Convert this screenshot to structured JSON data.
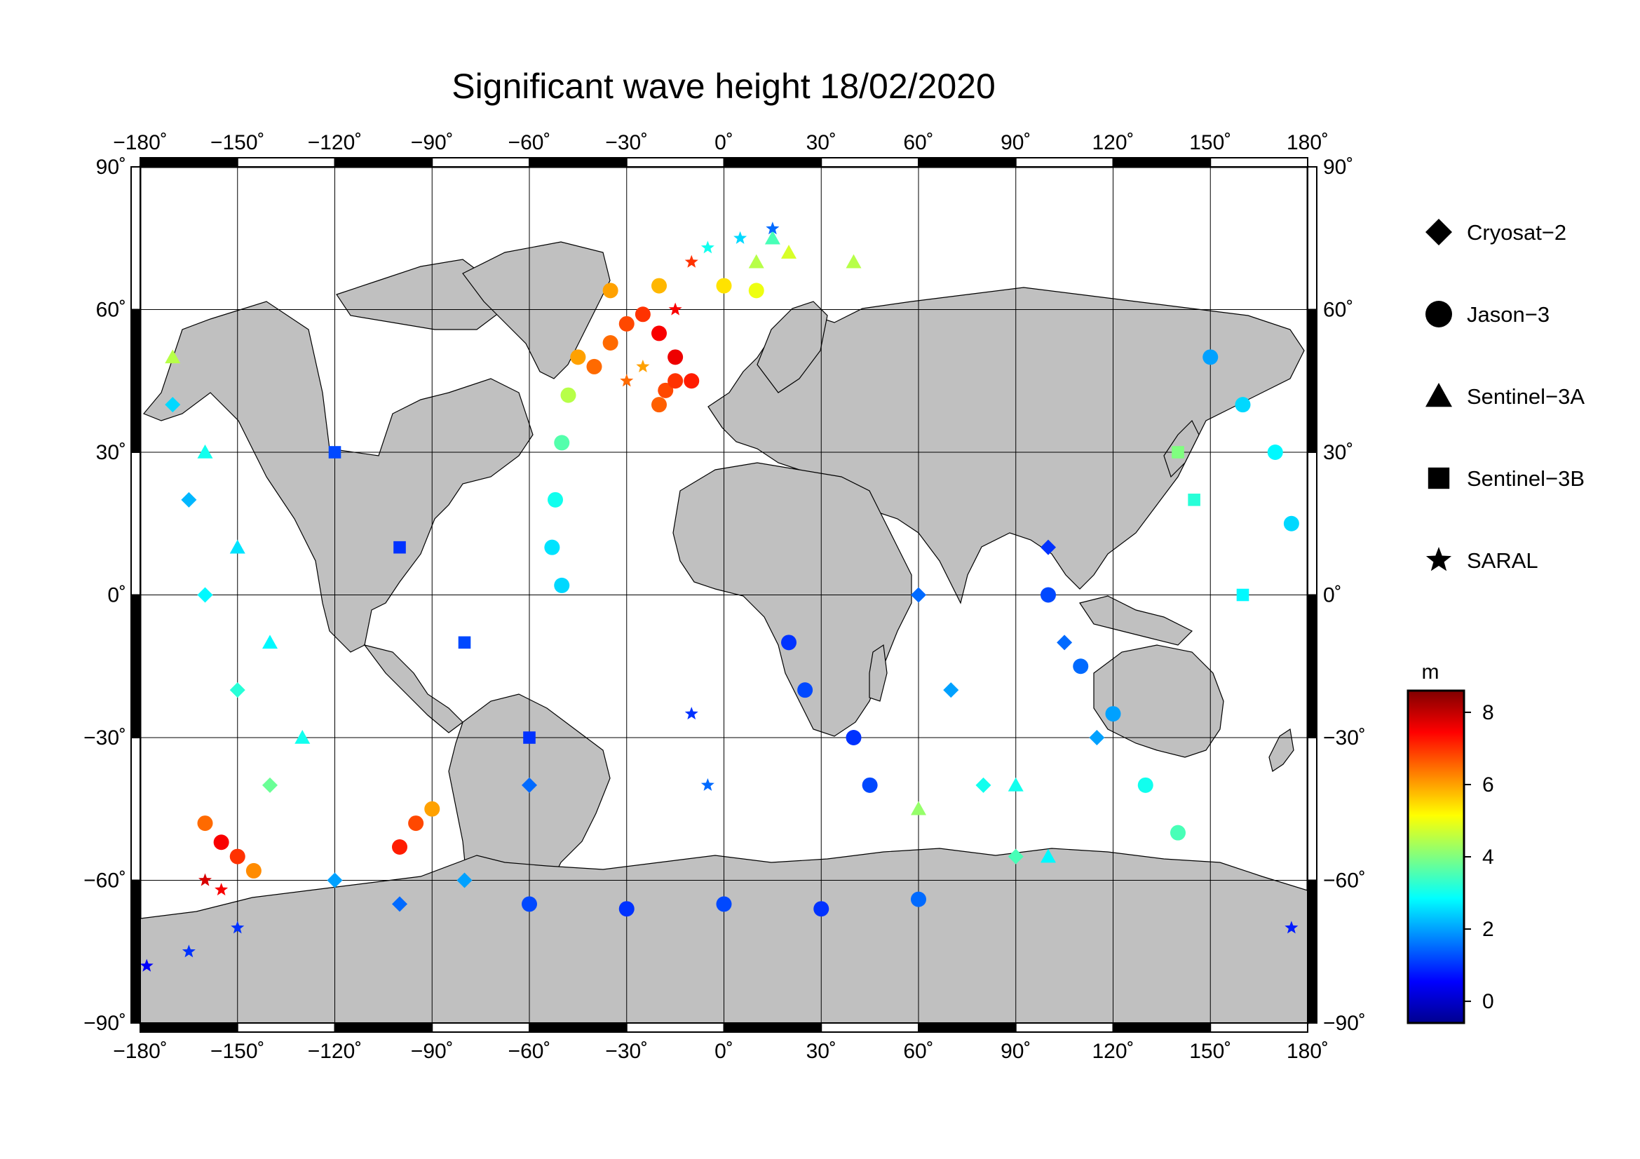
{
  "title": "Significant wave height 18/02/2020",
  "map": {
    "projection": "equirectangular",
    "lon_range": [
      -180,
      180
    ],
    "lat_range": [
      -90,
      90
    ],
    "grid_lon": [
      -180,
      -150,
      -120,
      -90,
      -60,
      -30,
      0,
      30,
      60,
      90,
      120,
      150,
      180
    ],
    "grid_lat": [
      -90,
      -60,
      -30,
      0,
      30,
      60,
      90
    ],
    "lon_labels": [
      "−180˚",
      "−150˚",
      "−120˚",
      "−90˚",
      "−60˚",
      "−30˚",
      "0˚",
      "30˚",
      "60˚",
      "90˚",
      "120˚",
      "150˚",
      "180˚"
    ],
    "lat_labels": [
      "−90˚",
      "−60˚",
      "−30˚",
      "0˚",
      "30˚",
      "60˚",
      "90˚"
    ],
    "land_color": "#c0c0c0",
    "ocean_color": "#ffffff"
  },
  "legend": {
    "items": [
      {
        "label": "Cryosat−2",
        "symbol": "diamond-icon"
      },
      {
        "label": "Jason−3",
        "symbol": "circle-icon"
      },
      {
        "label": "Sentinel−3A",
        "symbol": "triangle-icon"
      },
      {
        "label": "Sentinel−3B",
        "symbol": "square-icon"
      },
      {
        "label": "SARAL",
        "symbol": "star-icon"
      }
    ]
  },
  "colorbar": {
    "unit": "m",
    "min": -0.6,
    "max": 8.6,
    "ticks": [
      0,
      2,
      4,
      6,
      8
    ],
    "tick_labels": [
      "0",
      "2",
      "4",
      "6",
      "8"
    ],
    "colormap": [
      "#00008f",
      "#0000ff",
      "#0080ff",
      "#00ffff",
      "#80ff80",
      "#ffff00",
      "#ff8000",
      "#ff0000",
      "#800000"
    ]
  },
  "chart_data": {
    "type": "scatter",
    "title": "Significant wave height 18/02/2020",
    "xlabel": "",
    "ylabel": "",
    "xlim": [
      -180,
      180
    ],
    "ylim": [
      -90,
      90
    ],
    "value_unit": "m",
    "series": [
      {
        "name": "Jason−3",
        "points": [
          [
            -40,
            48,
            6.5
          ],
          [
            -35,
            53,
            6.5
          ],
          [
            -30,
            57,
            6.8
          ],
          [
            -25,
            59,
            7.0
          ],
          [
            -20,
            55,
            7.5
          ],
          [
            -15,
            50,
            7.6
          ],
          [
            -10,
            45,
            7.2
          ],
          [
            -20,
            40,
            6.6
          ],
          [
            -18,
            43,
            6.8
          ],
          [
            -15,
            45,
            7.0
          ],
          [
            -45,
            50,
            6.0
          ],
          [
            -48,
            42,
            4.5
          ],
          [
            -50,
            32,
            3.6
          ],
          [
            -52,
            20,
            3.0
          ],
          [
            -53,
            10,
            2.6
          ],
          [
            -50,
            2,
            2.5
          ],
          [
            -35,
            64,
            6.0
          ],
          [
            -20,
            65,
            5.8
          ],
          [
            0,
            65,
            5.4
          ],
          [
            10,
            64,
            5.0
          ],
          [
            -100,
            -53,
            7.2
          ],
          [
            -95,
            -48,
            6.8
          ],
          [
            -90,
            -45,
            6.0
          ],
          [
            -155,
            -52,
            7.5
          ],
          [
            -150,
            -55,
            7.0
          ],
          [
            -145,
            -58,
            6.2
          ],
          [
            -160,
            -48,
            6.5
          ],
          [
            -60,
            -65,
            1.2
          ],
          [
            -30,
            -66,
            1.0
          ],
          [
            0,
            -65,
            1.2
          ],
          [
            30,
            -66,
            1.0
          ],
          [
            60,
            -64,
            1.5
          ],
          [
            20,
            -10,
            1.0
          ],
          [
            25,
            -20,
            1.2
          ],
          [
            40,
            -30,
            1.0
          ],
          [
            45,
            -40,
            1.2
          ],
          [
            100,
            0,
            1.2
          ],
          [
            110,
            -15,
            1.5
          ],
          [
            120,
            -25,
            2.0
          ],
          [
            130,
            -40,
            3.0
          ],
          [
            140,
            -50,
            3.5
          ],
          [
            150,
            50,
            2.0
          ],
          [
            160,
            40,
            2.5
          ],
          [
            170,
            30,
            2.8
          ],
          [
            175,
            15,
            2.5
          ]
        ]
      },
      {
        "name": "Cryosat−2",
        "points": [
          [
            -170,
            40,
            2.5
          ],
          [
            -165,
            20,
            2.2
          ],
          [
            -160,
            0,
            2.8
          ],
          [
            -150,
            -20,
            3.2
          ],
          [
            -140,
            -40,
            3.8
          ],
          [
            -120,
            -60,
            2.0
          ],
          [
            -100,
            -65,
            1.5
          ],
          [
            -80,
            -60,
            2.0
          ],
          [
            -60,
            -40,
            1.5
          ],
          [
            60,
            0,
            1.5
          ],
          [
            70,
            -20,
            2.0
          ],
          [
            80,
            -40,
            3.0
          ],
          [
            90,
            -55,
            3.5
          ],
          [
            100,
            10,
            1.0
          ],
          [
            105,
            -10,
            1.5
          ],
          [
            115,
            -30,
            2.0
          ]
        ]
      },
      {
        "name": "Sentinel−3A",
        "points": [
          [
            -170,
            50,
            4.5
          ],
          [
            -160,
            30,
            3.0
          ],
          [
            -150,
            10,
            2.6
          ],
          [
            -140,
            -10,
            2.8
          ],
          [
            -130,
            -30,
            3.0
          ],
          [
            10,
            70,
            4.5
          ],
          [
            15,
            75,
            3.5
          ],
          [
            20,
            72,
            4.8
          ],
          [
            40,
            70,
            4.5
          ],
          [
            90,
            -40,
            3.0
          ],
          [
            100,
            -55,
            2.8
          ],
          [
            60,
            -45,
            4.2
          ]
        ]
      },
      {
        "name": "Sentinel−3B",
        "points": [
          [
            -120,
            30,
            1.2
          ],
          [
            -100,
            10,
            1.0
          ],
          [
            -80,
            -10,
            1.2
          ],
          [
            -60,
            -30,
            1.0
          ],
          [
            140,
            30,
            4.0
          ],
          [
            145,
            20,
            3.2
          ],
          [
            160,
            0,
            2.8
          ]
        ]
      },
      {
        "name": "SARAL",
        "points": [
          [
            -10,
            70,
            7.0
          ],
          [
            -15,
            60,
            7.5
          ],
          [
            -30,
            45,
            6.5
          ],
          [
            -25,
            48,
            6.0
          ],
          [
            15,
            77,
            1.5
          ],
          [
            5,
            75,
            2.5
          ],
          [
            -5,
            73,
            3.0
          ],
          [
            -165,
            -75,
            1.0
          ],
          [
            -150,
            -70,
            1.0
          ],
          [
            175,
            -70,
            0.8
          ],
          [
            -178,
            -78,
            0.5
          ],
          [
            -160,
            -60,
            7.8
          ],
          [
            -155,
            -62,
            7.5
          ],
          [
            -10,
            -25,
            1.0
          ],
          [
            -5,
            -40,
            1.5
          ]
        ]
      }
    ]
  }
}
